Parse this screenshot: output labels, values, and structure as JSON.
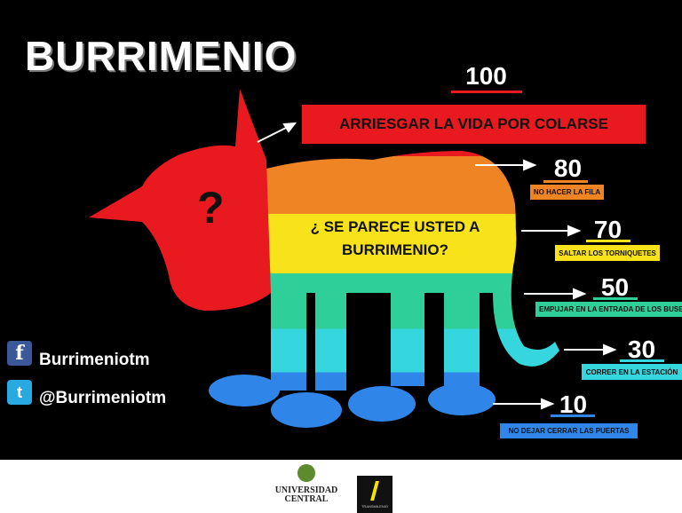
{
  "title": "BURRIMENIO",
  "question": {
    "mark": "?",
    "line1": "¿ SE PARECE USTED A",
    "line2": "BURRIMENIO?"
  },
  "levels": [
    {
      "value": "100",
      "label": "ARRIESGAR LA VIDA POR COLARSE",
      "color": "#e8191f"
    },
    {
      "value": "80",
      "label": "NO HACER LA FILA",
      "color": "#ee8424"
    },
    {
      "value": "70",
      "label": "SALTAR LOS TORNIQUETES",
      "color": "#f8e21a"
    },
    {
      "value": "50",
      "label": "EMPUJAR EN LA ENTRADA DE LOS BUSES",
      "color": "#2fcf9a"
    },
    {
      "value": "30",
      "label": "CORRER EN LA ESTACIÓN",
      "color": "#35d6dd"
    },
    {
      "value": "10",
      "label": "NO DEJAR CERRAR LAS PUERTAS",
      "color": "#2f86e8"
    }
  ],
  "social": {
    "facebook": {
      "icon": "facebook-icon",
      "handle": "Burrimeniotm"
    },
    "twitter": {
      "icon": "twitter-icon",
      "handle": "@Burrimeniotm"
    }
  },
  "footer": {
    "logo1": "UNIVERSIDAD CENTRAL",
    "logo2": "TRANSMILENIO"
  }
}
